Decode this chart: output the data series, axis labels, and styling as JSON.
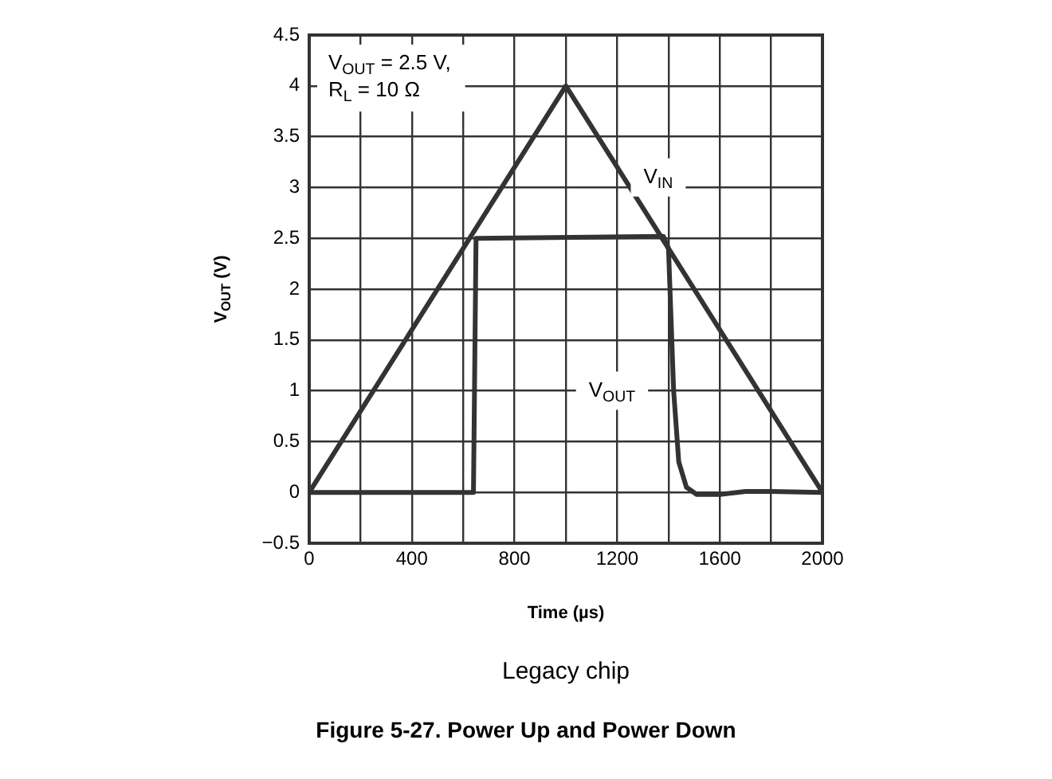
{
  "chart_data": {
    "type": "line",
    "title": "Figure 5-27. Power Up and Power Down",
    "xlabel": "Time (µs)",
    "ylabel": "V$_{OUT}$ (V)",
    "series": [
      {
        "color": "#333333",
        "x": [
          0,
          1000,
          2000
        ],
        "values": [
          0,
          4,
          0
        ]
      },
      {
        "color": "#333333",
        "x": [
          0,
          640,
          650,
          1380,
          1400,
          1420,
          1440,
          1470,
          1510,
          1600,
          1700,
          1800,
          2000
        ],
        "values": [
          0,
          0,
          2.5,
          2.52,
          2.4,
          1.0,
          0.3,
          0.05,
          -0.02,
          -0.02,
          0.01,
          0.01,
          0
        ]
      }
    ],
    "xlim": [
      0,
      2000
    ],
    "xticks": [
      0,
      {
        "value": 200,
        "label": null
      },
      400,
      {
        "value": 600,
        "label": null
      },
      800,
      {
        "value": 1000,
        "label": null
      },
      1200,
      {
        "value": 1400,
        "label": null
      },
      1600,
      {
        "value": 1800,
        "label": null
      },
      2000
    ],
    "ylim": [
      -0.5,
      4.5
    ],
    "yticks": [
      {
        "value": -0.5,
        "label": "−0.5"
      },
      0,
      0.5,
      1,
      1.5,
      2,
      2.5,
      3,
      3.5,
      4,
      4.5
    ],
    "grid": true,
    "legend": false,
    "marker": "none",
    "line_style": "solid",
    "annotations": [
      {
        "text": "V$_{IN}$",
        "x": 1360,
        "y": 3.1
      },
      "V$_{OUT}$",
      "V$_{OUT}$ = 2.5 V,\nR$_{L}$ = 10 Ω",
      "Legacy chip"
    ]
  }
}
